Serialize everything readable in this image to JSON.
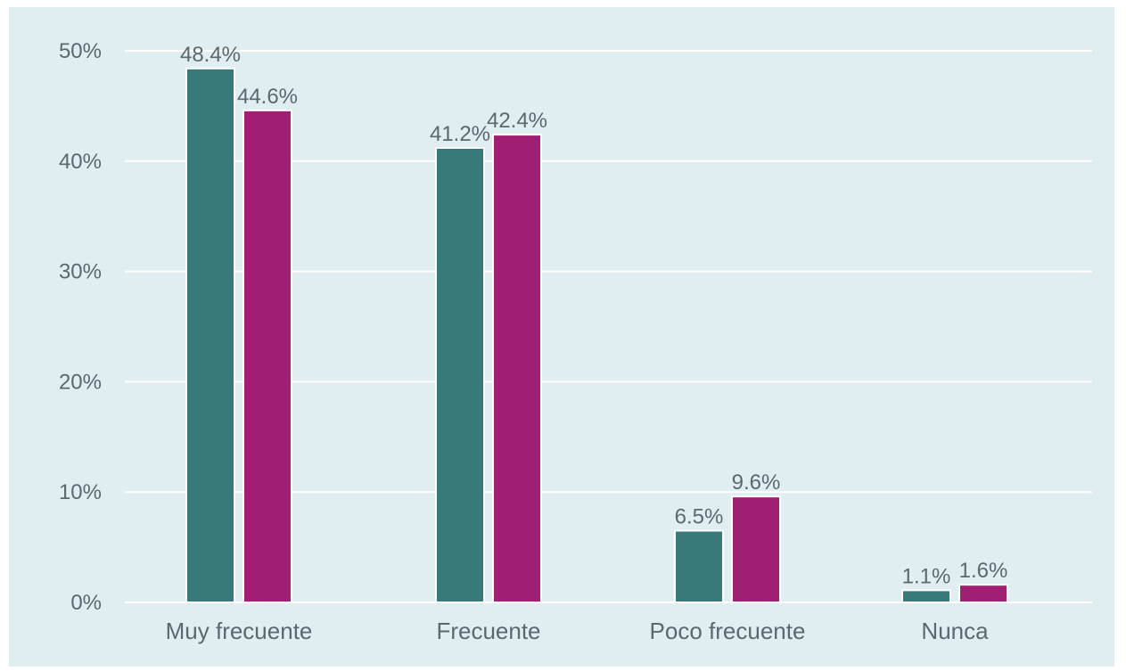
{
  "chart_data": {
    "type": "bar",
    "categories": [
      "Muy frecuente",
      "Frecuente",
      "Poco frecuente",
      "Nunca"
    ],
    "series": [
      {
        "values": [
          48.4,
          41.2,
          6.5,
          1.1
        ],
        "color": "#377a79"
      },
      {
        "values": [
          44.6,
          42.4,
          9.6,
          1.6
        ],
        "color": "#a01f72"
      }
    ],
    "data_labels": [
      [
        "48.4%",
        "41.2%",
        "6.5%",
        "1.1%"
      ],
      [
        "44.6%",
        "42.4%",
        "9.6%",
        "1.6%"
      ]
    ],
    "y_ticks": [
      0,
      10,
      20,
      30,
      40,
      50
    ],
    "y_tick_labels": [
      "0%",
      "10%",
      "20%",
      "30%",
      "40%",
      "50%"
    ],
    "ylim": [
      0,
      50
    ],
    "grid": true,
    "background_color": "#e0eef2",
    "gridline_color": "#ffffff",
    "title": "",
    "xlabel": "",
    "ylabel": ""
  }
}
